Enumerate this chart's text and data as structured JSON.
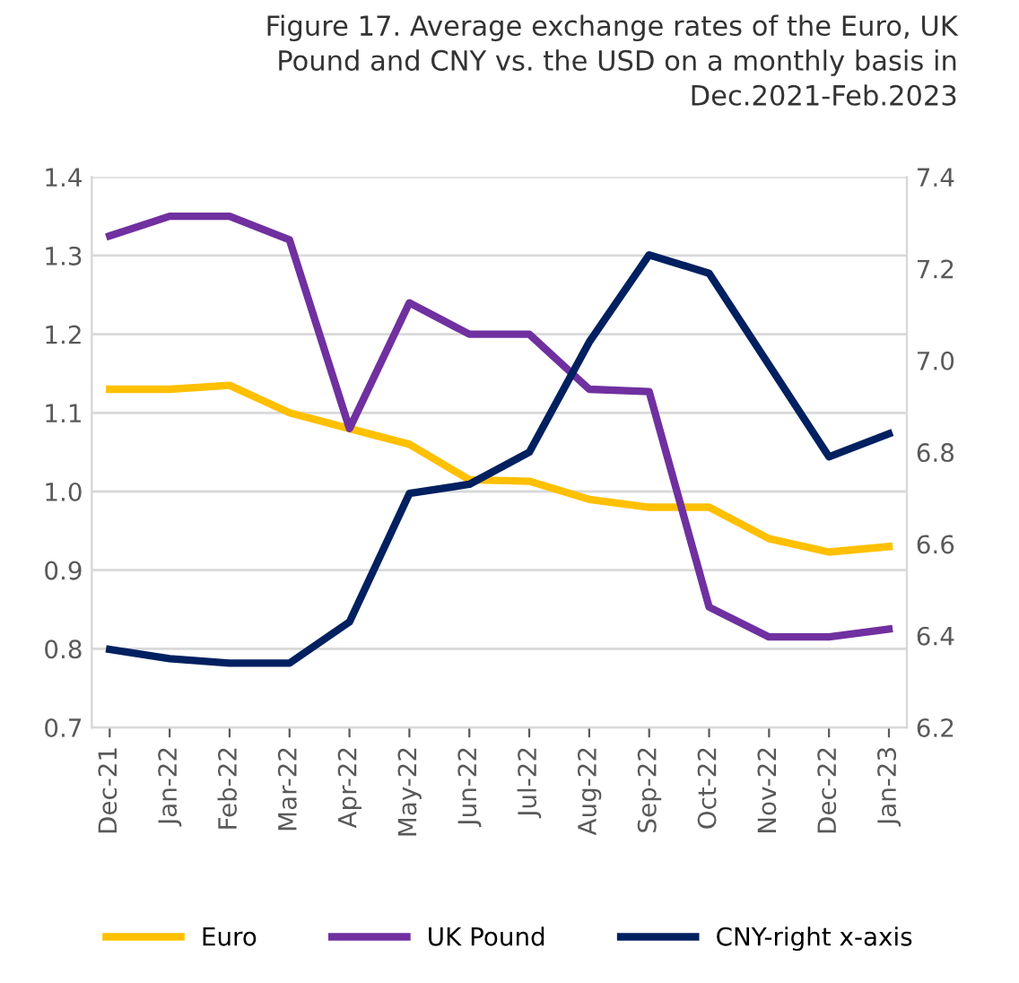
{
  "chart_data": {
    "type": "line",
    "title": "Figure 17. Average exchange rates of the Euro, UK\nPound and CNY vs. the USD on a monthly basis in\nDec.2021-Feb.2023",
    "categories": [
      "Dec-21",
      "Jan-22",
      "Feb-22",
      "Mar-22",
      "Apr-22",
      "May-22",
      "Jun-22",
      "Jul-22",
      "Aug-22",
      "Sep-22",
      "Oct-22",
      "Nov-22",
      "Dec-22",
      "Jan-23"
    ],
    "series": [
      {
        "name": "Euro",
        "color": "#ffc000",
        "values": [
          1.13,
          1.13,
          1.135,
          1.1,
          1.08,
          1.06,
          1.015,
          1.013,
          0.99,
          0.98,
          0.98,
          0.94,
          0.923,
          0.93
        ]
      },
      {
        "name": "UK Pound",
        "color": "#7030a0",
        "values": [
          1.325,
          1.35,
          1.35,
          1.32,
          1.08,
          1.24,
          1.2,
          1.2,
          1.13,
          1.127,
          0.853,
          0.815,
          0.815,
          0.825
        ]
      },
      {
        "name": "CNY-right x-axis",
        "color": "#002060",
        "axis": "y2",
        "values": [
          6.37,
          6.35,
          6.34,
          6.34,
          6.43,
          6.71,
          6.73,
          6.8,
          7.04,
          7.23,
          7.19,
          6.99,
          6.79,
          6.84
        ]
      }
    ],
    "ylim": [
      0.7,
      1.4
    ],
    "yticks": [
      0.7,
      0.8,
      0.9,
      {
        "value": 1.0,
        "label": "1.0"
      },
      1.1,
      1.2,
      1.3,
      1.4
    ],
    "y2lim": [
      6.2,
      7.4
    ],
    "y2ticks": [
      6.2,
      6.4,
      6.6,
      6.8,
      {
        "value": 7.0,
        "label": "7.0"
      },
      7.2,
      7.4
    ],
    "grid": "y",
    "legend": "bottom",
    "line_style": "solid",
    "marker": "none"
  }
}
